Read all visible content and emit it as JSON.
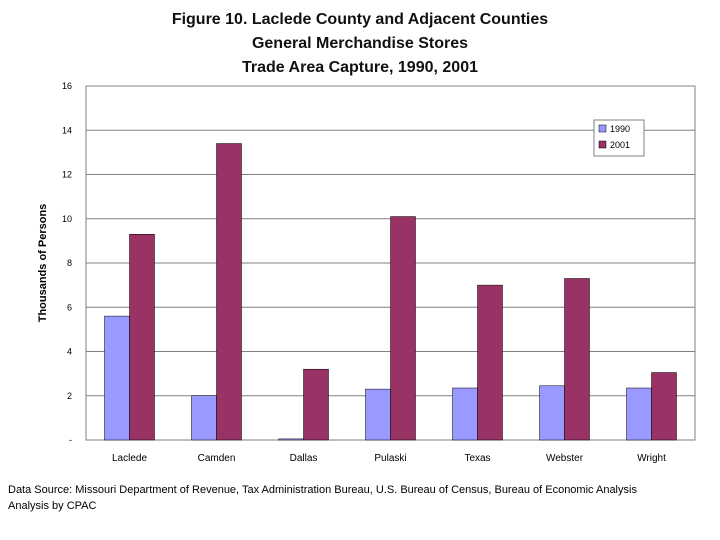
{
  "chart_data": {
    "type": "bar",
    "title_lines": [
      "Figure 10.  Laclede County and Adjacent Counties",
      "General Merchandise Stores",
      "Trade Area Capture, 1990, 2001"
    ],
    "xlabel": "",
    "ylabel": "Thousands of Persons",
    "ylim": [
      0,
      16
    ],
    "yticks": [
      0,
      2,
      4,
      6,
      8,
      10,
      12,
      14,
      16
    ],
    "ytick_labels": [
      "-",
      "2",
      "4",
      "6",
      "8",
      "10",
      "12",
      "14",
      "16"
    ],
    "grid": true,
    "legend_position": "top-right",
    "categories": [
      "Laclede",
      "Camden",
      "Dallas",
      "Pulaski",
      "Texas",
      "Webster",
      "Wright"
    ],
    "series": [
      {
        "name": "1990",
        "color": "#9999ff",
        "values": [
          5.6,
          2.0,
          0.05,
          2.3,
          2.35,
          2.45,
          2.35
        ]
      },
      {
        "name": "2001",
        "color": "#993366",
        "values": [
          9.3,
          13.4,
          3.2,
          10.1,
          7.0,
          7.3,
          3.05
        ]
      }
    ]
  },
  "footer": {
    "source": "Data Source: Missouri Department of Revenue, Tax Administration Bureau, U.S. Bureau of Census, Bureau of Economic Analysis",
    "analysis": "Analysis by CPAC"
  }
}
